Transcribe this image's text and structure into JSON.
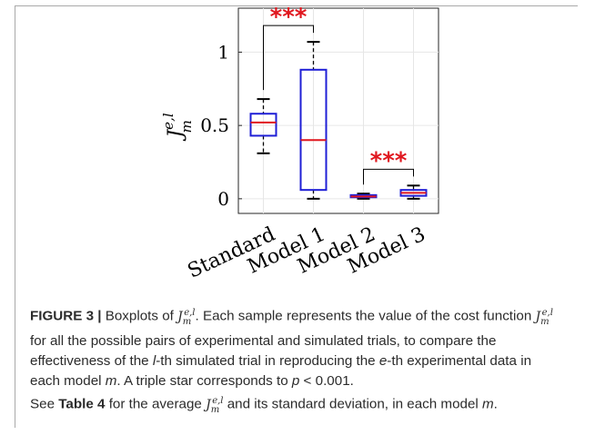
{
  "chart_data": {
    "type": "boxplot",
    "ylabel_base": "J",
    "ylabel_sup": "e,l",
    "ylabel_sub": "m",
    "yticks": [
      "0",
      "0.5",
      "1"
    ],
    "ytick_values": [
      0,
      0.5,
      1
    ],
    "ylim": [
      -0.1,
      1.3
    ],
    "grid": true,
    "categories": [
      "Standard",
      "Model 1",
      "Model 2",
      "Model 3"
    ],
    "boxes": [
      {
        "min": 0.31,
        "q1": 0.43,
        "median": 0.52,
        "q3": 0.58,
        "max": 0.68
      },
      {
        "min": 0.0,
        "q1": 0.06,
        "median": 0.4,
        "q3": 0.88,
        "max": 1.07
      },
      {
        "min": 0.0,
        "q1": 0.01,
        "median": 0.015,
        "q3": 0.025,
        "max": 0.035
      },
      {
        "min": 0.0,
        "q1": 0.02,
        "median": 0.04,
        "q3": 0.06,
        "max": 0.09
      }
    ],
    "significance": [
      {
        "from": 0,
        "to": 1,
        "label": "***"
      },
      {
        "from": 2,
        "to": 3,
        "label": "***"
      }
    ],
    "colors": {
      "box": "#1f1fd6",
      "median": "#e0171f",
      "whisker": "#000000",
      "star": "#e0171f",
      "grid": "#e6e6e6"
    }
  },
  "caption": {
    "fig_label": "FIGURE 3 |",
    "t1": " Boxplots of ",
    "t2": ". Each sample represents the value of the cost function ",
    "t3": " for all the possible pairs of experimental and simulated trials, to compare the effectiveness of the ",
    "l_var": "l",
    "t4": "-th simulated trial in reproducing the ",
    "e_var": "e",
    "t5": "-th experimental data in each model ",
    "m_var": "m",
    "t6": ". A triple star corresponds to ",
    "p_expr": "p",
    "p_rest": " < 0.001.",
    "t7": "See ",
    "table_ref": "Table 4",
    "t8": " for the average ",
    "t9": " and its standard deviation, in each model ",
    "t10": "."
  }
}
